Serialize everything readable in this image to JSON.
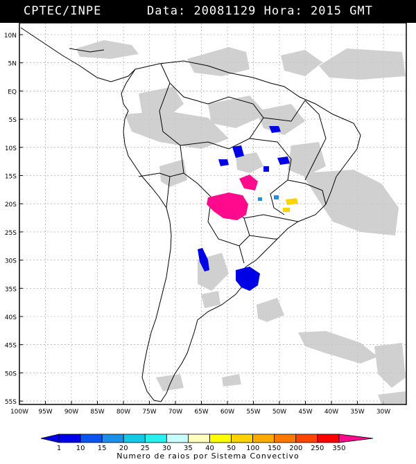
{
  "header": {
    "source": "CPTEC/INPE",
    "date_label": "Data:",
    "date_value": "20081129",
    "time_label": "Hora:",
    "time_value": "2015 GMT"
  },
  "axes": {
    "lat_labels": [
      "10N",
      "5N",
      "EQ",
      "5S",
      "10S",
      "15S",
      "20S",
      "25S",
      "30S",
      "35S",
      "40S",
      "45S",
      "50S",
      "55S"
    ],
    "lon_labels": [
      "100W",
      "95W",
      "90W",
      "85W",
      "80W",
      "75W",
      "70W",
      "65W",
      "60W",
      "55W",
      "50W",
      "45W",
      "40W",
      "35W",
      "30W"
    ]
  },
  "colorbar": {
    "ticks": [
      "1",
      "10",
      "15",
      "20",
      "25",
      "30",
      "35",
      "40",
      "50",
      "100",
      "150",
      "200",
      "250",
      "350"
    ],
    "colors": [
      "#0000e6",
      "#0a55ee",
      "#1e8fe6",
      "#14c8e6",
      "#28f0f0",
      "#c8ffff",
      "#ffffbe",
      "#ffff00",
      "#ffd200",
      "#ffaa00",
      "#ff7800",
      "#ff4600",
      "#ff0000",
      "#ff0a8c"
    ],
    "caption": "Numero de raios por Sistema Convectivo"
  },
  "colors": {
    "header_bg": "#000000",
    "cloud_gray": "#c8c8c8",
    "land_outline": "#000000"
  }
}
